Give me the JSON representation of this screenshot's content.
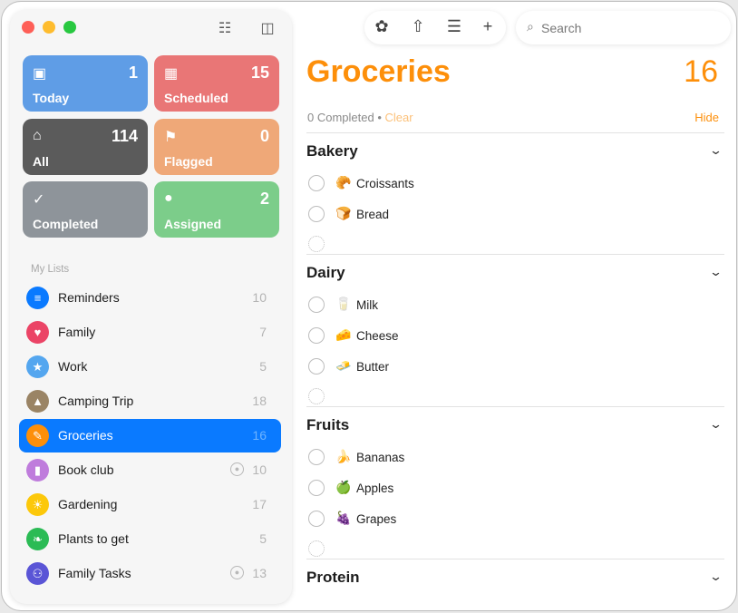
{
  "toolbar": {
    "search_placeholder": "Search"
  },
  "smart_lists": [
    {
      "label": "Today",
      "count": "1",
      "color": "#5f9de6",
      "icon": "calendar-today-icon"
    },
    {
      "label": "Scheduled",
      "count": "15",
      "color": "#e97676",
      "icon": "calendar-icon"
    },
    {
      "label": "All",
      "count": "114",
      "color": "#5b5b5b",
      "icon": "tray-icon"
    },
    {
      "label": "Flagged",
      "count": "0",
      "color": "#efa878",
      "icon": "flag-icon"
    },
    {
      "label": "Completed",
      "count": "",
      "color": "#8e949a",
      "icon": "checkmark-icon"
    },
    {
      "label": "Assigned",
      "count": "2",
      "color": "#7ccd8a",
      "icon": "person-icon"
    }
  ],
  "my_lists_header": "My Lists",
  "lists": [
    {
      "label": "Reminders",
      "count": "10",
      "color": "#0a7aff",
      "icon": "list-icon",
      "shared": false
    },
    {
      "label": "Family",
      "count": "7",
      "color": "#eb4466",
      "icon": "heart-icon",
      "shared": false
    },
    {
      "label": "Work",
      "count": "5",
      "color": "#54a6ef",
      "icon": "star-icon",
      "shared": false
    },
    {
      "label": "Camping Trip",
      "count": "18",
      "color": "#9a8465",
      "icon": "tent-icon",
      "shared": false
    },
    {
      "label": "Groceries",
      "count": "16",
      "color": "#fd8f0a",
      "icon": "carrot-icon",
      "shared": false,
      "selected": true
    },
    {
      "label": "Book club",
      "count": "10",
      "color": "#bf7cdc",
      "icon": "bookmark-icon",
      "shared": true
    },
    {
      "label": "Gardening",
      "count": "17",
      "color": "#fcc80a",
      "icon": "sun-icon",
      "shared": false
    },
    {
      "label": "Plants to get",
      "count": "5",
      "color": "#2bbb55",
      "icon": "leaf-icon",
      "shared": false
    },
    {
      "label": "Family Tasks",
      "count": "13",
      "color": "#5a55d6",
      "icon": "people-icon",
      "shared": true
    }
  ],
  "main": {
    "title": "Groceries",
    "count": "16",
    "completed": "0 Completed",
    "clear": "Clear",
    "hide": "Hide",
    "accent": "#fd8f0a",
    "sections": [
      {
        "name": "Bakery",
        "items": [
          {
            "emoji": "🥐",
            "text": "Croissants"
          },
          {
            "emoji": "🍞",
            "text": "Bread"
          }
        ]
      },
      {
        "name": "Dairy",
        "items": [
          {
            "emoji": "🥛",
            "text": "Milk"
          },
          {
            "emoji": "🧀",
            "text": "Cheese"
          },
          {
            "emoji": "🧈",
            "text": "Butter"
          }
        ]
      },
      {
        "name": "Fruits",
        "items": [
          {
            "emoji": "🍌",
            "text": "Bananas"
          },
          {
            "emoji": "🍏",
            "text": "Apples"
          },
          {
            "emoji": "🍇",
            "text": "Grapes"
          }
        ]
      },
      {
        "name": "Protein",
        "items": []
      }
    ]
  }
}
